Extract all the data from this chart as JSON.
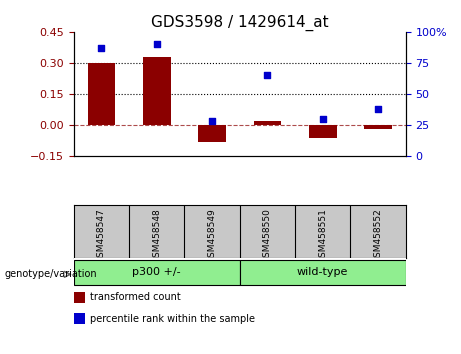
{
  "title": "GDS3598 / 1429614_at",
  "samples": [
    "GSM458547",
    "GSM458548",
    "GSM458549",
    "GSM458550",
    "GSM458551",
    "GSM458552"
  ],
  "transformed_count": [
    0.3,
    0.33,
    -0.085,
    0.02,
    -0.065,
    -0.018
  ],
  "percentile_rank": [
    87,
    90,
    28,
    65,
    30,
    38
  ],
  "groups": [
    {
      "label": "p300 +/-",
      "start": 0,
      "end": 2,
      "color": "#90EE90"
    },
    {
      "label": "wild-type",
      "start": 3,
      "end": 5,
      "color": "#90EE90"
    }
  ],
  "ylim_left": [
    -0.15,
    0.45
  ],
  "ylim_right": [
    0,
    100
  ],
  "yticks_left": [
    -0.15,
    0,
    0.15,
    0.3,
    0.45
  ],
  "yticks_right": [
    0,
    25,
    50,
    75,
    100
  ],
  "hlines_dotted": [
    0.15,
    0.3
  ],
  "bar_color": "#8B0000",
  "scatter_color": "#0000CC",
  "bar_width": 0.5,
  "title_fontsize": 11,
  "tick_fontsize": 8,
  "label_fontsize": 8,
  "sample_label_area_color": "#C8C8C8",
  "legend_items": [
    {
      "label": "transformed count",
      "color": "#8B0000"
    },
    {
      "label": "percentile rank within the sample",
      "color": "#0000CC"
    }
  ]
}
